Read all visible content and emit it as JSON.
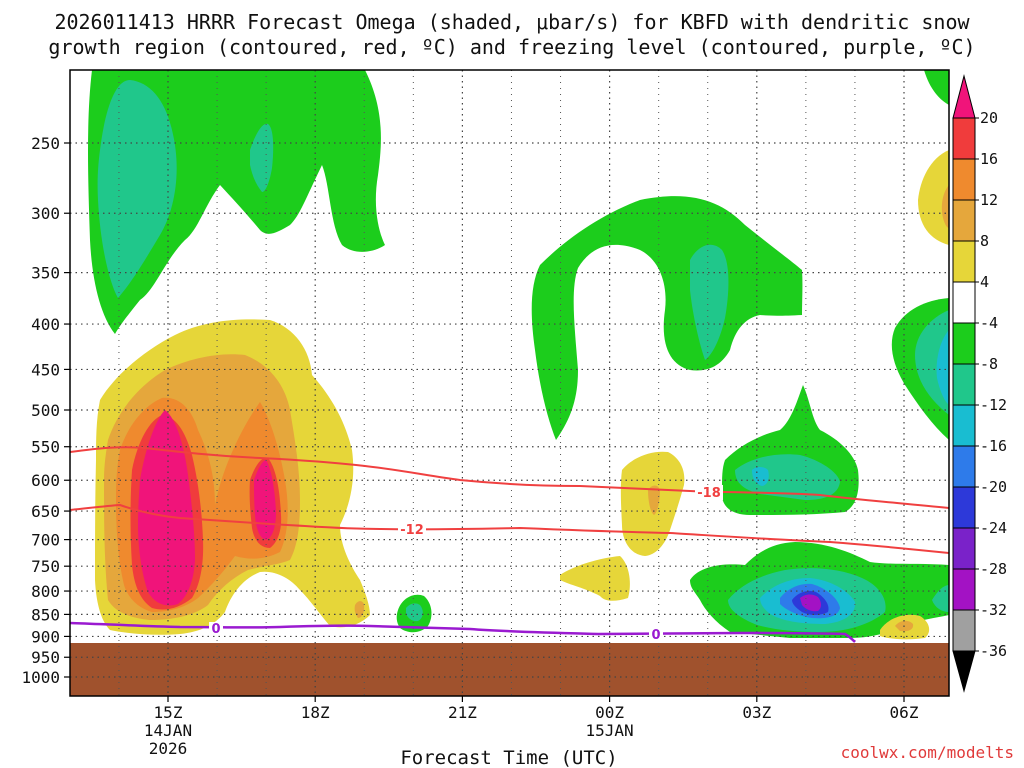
{
  "chart_data": {
    "type": "heatmap",
    "title_line1": "2026011413 HRRR Forecast Omega (shaded, μbar/s) for KBFD with dendritic snow",
    "title_line2": "growth region (contoured, red, ºC) and freezing level (contoured, purple, ºC)",
    "xlabel": "Forecast Time (UTC)",
    "credit": "coolwx.com/modelts",
    "y_ticks": [
      "250",
      "300",
      "350",
      "400",
      "450",
      "500",
      "550",
      "600",
      "650",
      "700",
      "750",
      "800",
      "850",
      "900",
      "950",
      "1000"
    ],
    "x_ticks": [
      {
        "lines": [
          "15Z",
          "14JAN",
          "2026"
        ]
      },
      {
        "lines": [
          "18Z"
        ]
      },
      {
        "lines": [
          "21Z"
        ]
      },
      {
        "lines": [
          "00Z",
          "15JAN"
        ]
      },
      {
        "lines": [
          "03Z"
        ]
      },
      {
        "lines": [
          "06Z"
        ]
      }
    ],
    "colorbar_ticks": [
      "20",
      "16",
      "12",
      "8",
      "4",
      "-4",
      "-8",
      "-12",
      "-16",
      "-20",
      "-24",
      "-28",
      "-32",
      "-36"
    ],
    "colorbar_colors": {
      "above_20": "#f0147a",
      "16_to_20": "#f03c3c",
      "12_to_16": "#ef8a2e",
      "8_to_12": "#e5a73c",
      "4_to_8": "#e6d639",
      "m4_to_4": "#ffffff",
      "m8_to_m4": "#1ccd1c",
      "m12_to_m8": "#20c78b",
      "m16_to_m12": "#19bdd1",
      "m20_to_m16": "#2e7bea",
      "m24_to_m20": "#2d39d9",
      "m28_to_m24": "#7a22c9",
      "m32_to_m28": "#a312c4",
      "m36_to_m32": "#a0a0a0",
      "below_m36": "#000000"
    },
    "ground_color": "#a0522d",
    "contours": [
      {
        "name": "dgz-top",
        "label": "-18",
        "color": "#f04040"
      },
      {
        "name": "dgz-bottom",
        "label": "-12",
        "color": "#f04040"
      },
      {
        "name": "freezing-level",
        "label": "0",
        "color": "#9a1ad0"
      }
    ]
  }
}
